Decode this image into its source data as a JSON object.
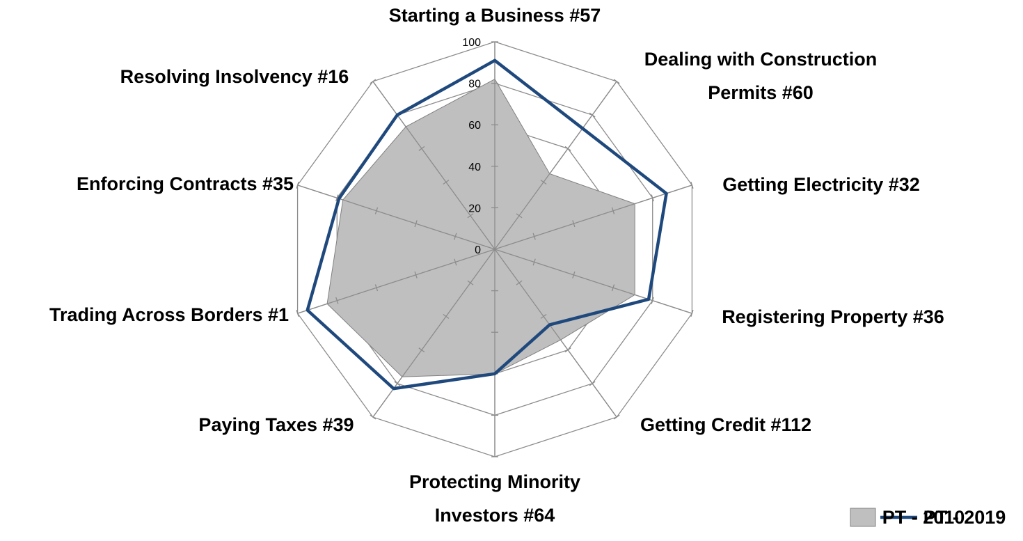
{
  "chart_data": {
    "type": "radar",
    "categories": [
      "Starting a Business #57",
      "Dealing with Construction Permits #60",
      "Getting Electricity #32",
      "Registering Property #36",
      "Getting Credit #112",
      "Protecting Minority Investors #64",
      "Paying Taxes #39",
      "Trading Across Borders #1",
      "Enforcing Contracts #35",
      "Resolving Insolvency #16"
    ],
    "series": [
      {
        "name": "PT - 2010",
        "color": "#bfbfbf",
        "values": [
          82,
          45,
          71,
          71,
          54,
          60,
          76,
          85,
          77,
          73
        ]
      },
      {
        "name": "PT - 2019",
        "color": "#1f497d",
        "values": [
          91,
          72,
          87,
          78,
          45,
          60,
          83,
          95,
          79,
          80
        ]
      }
    ],
    "ylim": [
      0,
      100
    ],
    "yticks": [
      0,
      20,
      40,
      60,
      80,
      100
    ],
    "grid": true,
    "legend": "bottom-right"
  }
}
